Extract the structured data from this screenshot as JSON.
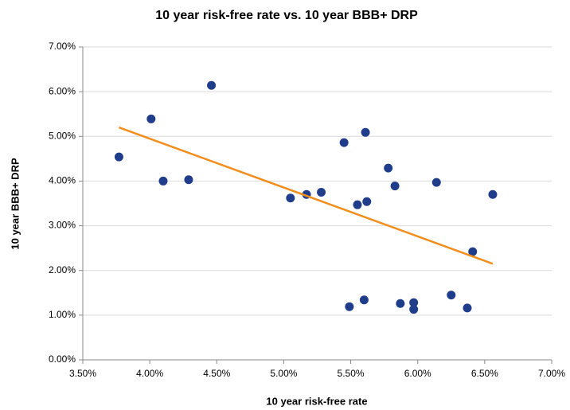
{
  "chart_data": {
    "type": "scatter",
    "title": "10 year risk-free rate vs. 10 year BBB+ DRP",
    "x_label": "10 year risk-free rate",
    "y_label": "10 year BBB+ DRP",
    "xlim": [
      3.5,
      7.0
    ],
    "xticks": [
      {
        "value": 3.5,
        "label": "3.50%"
      },
      {
        "value": 4.0,
        "label": "4.00%"
      },
      {
        "value": 4.5,
        "label": "4.50%"
      },
      {
        "value": 5.0,
        "label": "5.00%"
      },
      {
        "value": 5.5,
        "label": "5.50%"
      },
      {
        "value": 6.0,
        "label": "6.00%"
      },
      {
        "value": 6.5,
        "label": "6.50%"
      },
      {
        "value": 7.0,
        "label": "7.00%"
      }
    ],
    "ylim": [
      0,
      7
    ],
    "yticks": [
      {
        "value": 0,
        "label": "0.00%"
      },
      {
        "value": 1,
        "label": "1.00%"
      },
      {
        "value": 2,
        "label": "2.00%"
      },
      {
        "value": 3,
        "label": "3.00%"
      },
      {
        "value": 4,
        "label": "4.00%"
      },
      {
        "value": 5,
        "label": "5.00%"
      },
      {
        "value": 6,
        "label": "6.00%"
      },
      {
        "value": 7,
        "label": "7.00%"
      }
    ],
    "grid": true,
    "color": "#1f3d8a",
    "x": [
      3.77,
      4.01,
      4.1,
      4.29,
      4.46,
      5.05,
      5.17,
      5.28,
      5.45,
      5.61,
      5.55,
      5.62,
      5.78,
      5.83,
      6.14,
      6.56,
      6.41,
      5.49,
      5.6,
      5.87,
      5.97,
      5.97,
      6.25,
      6.37
    ],
    "values": [
      4.54,
      5.39,
      4.0,
      4.03,
      6.14,
      3.62,
      3.7,
      3.75,
      4.86,
      5.09,
      3.47,
      3.54,
      4.29,
      3.89,
      3.97,
      3.7,
      2.42,
      1.19,
      1.34,
      1.26,
      1.28,
      1.13,
      1.45,
      1.16
    ],
    "trendline": {
      "color": "#f28e1c",
      "x": [
        3.77,
        6.56
      ],
      "values": [
        5.2,
        2.15
      ]
    }
  }
}
